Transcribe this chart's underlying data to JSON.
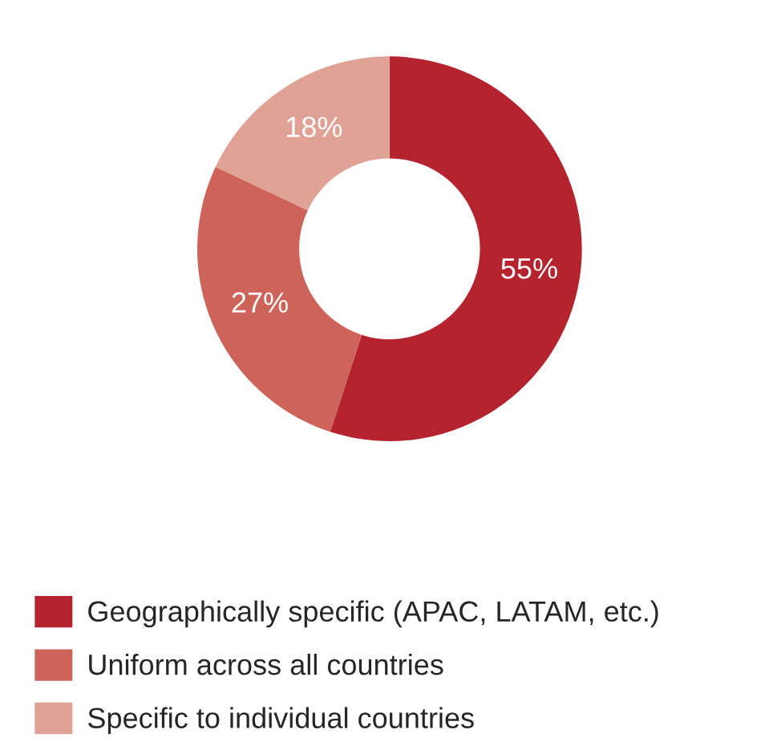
{
  "chart_data": {
    "type": "donut",
    "categories": [
      "Geographically specific (APAC, LATAM, etc.)",
      "Uniform across all countries",
      "Specific to individual countries"
    ],
    "values": [
      55,
      27,
      18
    ],
    "colors": [
      "#b5232e",
      "#cd6359",
      "#e0a294"
    ],
    "value_labels": [
      "55%",
      "27%",
      "18%"
    ],
    "legend": "bottom left"
  }
}
